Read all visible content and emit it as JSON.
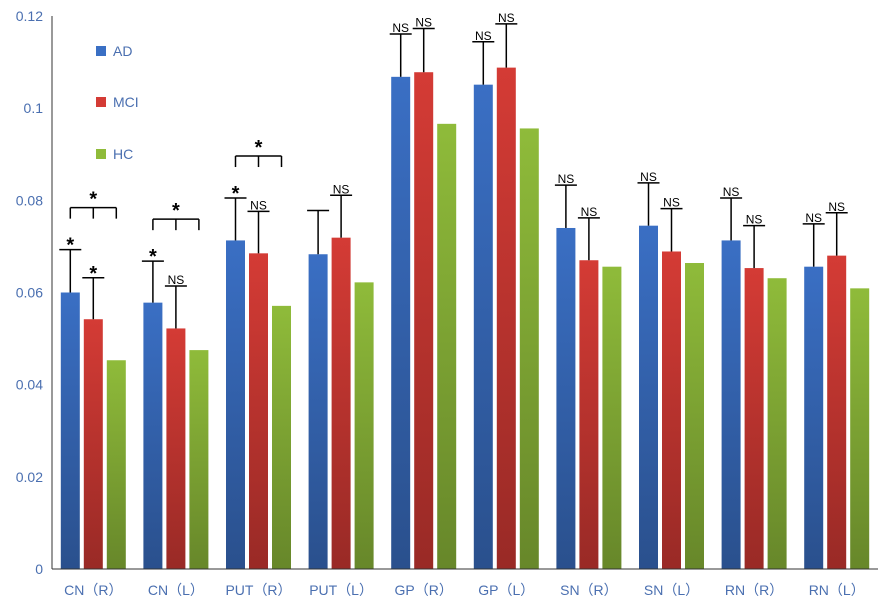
{
  "chart_data": {
    "type": "bar",
    "title": "",
    "xlabel": "",
    "ylabel": "",
    "ylim": [
      0,
      0.12
    ],
    "yticks": [
      "0",
      "0.02",
      "0.04",
      "0.06",
      "0.08",
      "0.1",
      "0.12"
    ],
    "categories": [
      "CN（R）",
      "CN（L）",
      "PUT（R）",
      "PUT（L）",
      "GP（R）",
      "GP（L）",
      "SN（R）",
      "SN（L）",
      "RN（R）",
      "RN（L）"
    ],
    "series": [
      {
        "name": "AD",
        "color": "#3a6fc4",
        "values": [
          0.06,
          0.0578,
          0.0713,
          0.0683,
          0.1068,
          0.1051,
          0.074,
          0.0745,
          0.0713,
          0.0656
        ],
        "errors": [
          0.0093,
          0.009,
          0.0092,
          0.0095,
          0.0093,
          0.0093,
          0.0093,
          0.0093,
          0.0092,
          0.0093
        ]
      },
      {
        "name": "MCI",
        "color": "#d43b35",
        "values": [
          0.0542,
          0.0522,
          0.0685,
          0.0719,
          0.1078,
          0.1088,
          0.067,
          0.0689,
          0.0653,
          0.068
        ],
        "errors": [
          0.009,
          0.0092,
          0.0091,
          0.0092,
          0.0095,
          0.0095,
          0.0092,
          0.0093,
          0.0092,
          0.0093
        ]
      },
      {
        "name": "HC",
        "color": "#8fbb3a",
        "values": [
          0.0453,
          0.0475,
          0.0571,
          0.0622,
          0.0966,
          0.0956,
          0.0656,
          0.0664,
          0.0631,
          0.0609
        ],
        "errors": [
          0,
          0,
          0,
          0,
          0,
          0,
          0,
          0,
          0,
          0
        ]
      }
    ],
    "annotations": {
      "ad_marks": [
        "*",
        "*",
        "*",
        "",
        "NS",
        "NS",
        "NS",
        "NS",
        "NS",
        "NS"
      ],
      "mci_marks": [
        "*",
        "NS",
        "NS",
        "NS",
        "NS",
        "NS",
        "NS",
        "NS",
        "NS",
        "NS"
      ],
      "bracket_marks": [
        "*",
        "*",
        "*",
        "",
        "",
        "",
        "",
        "",
        "",
        ""
      ]
    },
    "legend": {
      "placement": "top-left",
      "entries": [
        "AD",
        "MCI",
        "HC"
      ]
    },
    "grid": false
  }
}
